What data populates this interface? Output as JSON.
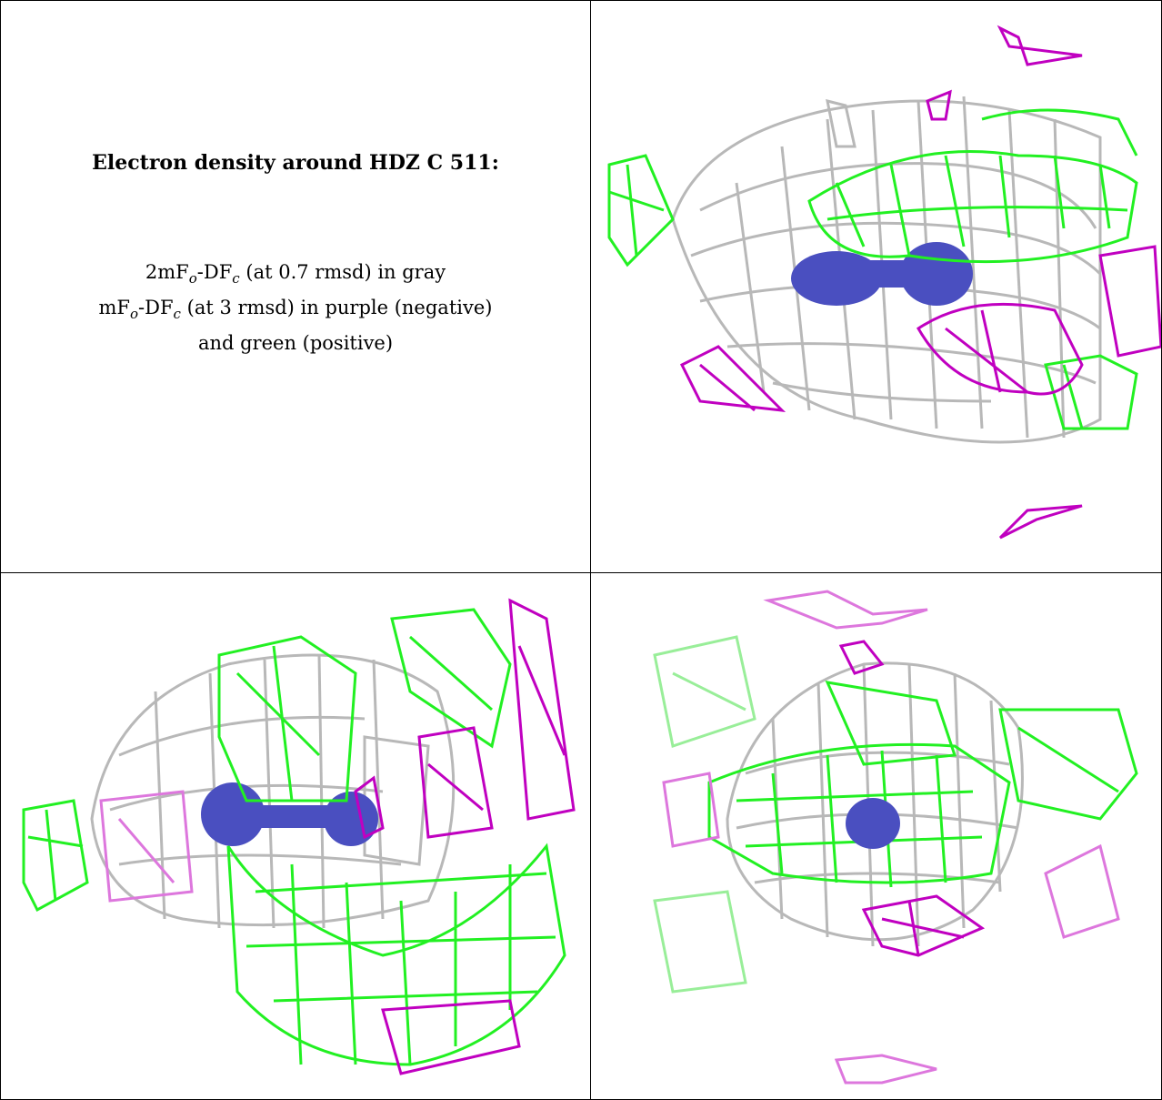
{
  "caption": {
    "title": "Electron density around HDZ C 511:",
    "line1_a": "2mF",
    "line1_b": "o",
    "line1_c": "-DF",
    "line1_d": "c",
    "line1_e": " (at 0.7 rmsd) in gray",
    "line2_a": "mF",
    "line2_b": "o",
    "line2_c": "-DF",
    "line2_d": "c",
    "line2_e": " (at 3 rmsd) in purple (negative)",
    "line3": "and green (positive)"
  },
  "colors": {
    "gray_mesh": "#b8b8b8",
    "green_mesh": "#22f022",
    "purple_mesh": "#c000c0",
    "ligand": "#4a4fc0"
  },
  "panels": [
    {
      "name": "view-top-right"
    },
    {
      "name": "view-bottom-left"
    },
    {
      "name": "view-bottom-right"
    }
  ]
}
